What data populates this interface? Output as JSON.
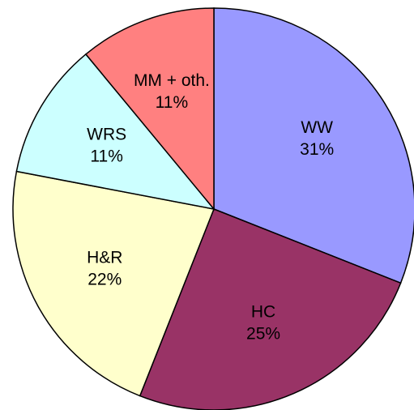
{
  "chart_data": {
    "type": "pie",
    "categories": [
      "WW",
      "HC",
      "H&R",
      "WRS",
      "MM + oth."
    ],
    "values": [
      31,
      25,
      22,
      11,
      11
    ],
    "value_labels": [
      "31%",
      "25%",
      "22%",
      "11%",
      "11%"
    ],
    "colors": [
      "#9999ff",
      "#993366",
      "#ffffcc",
      "#ccffff",
      "#ff8080"
    ]
  }
}
